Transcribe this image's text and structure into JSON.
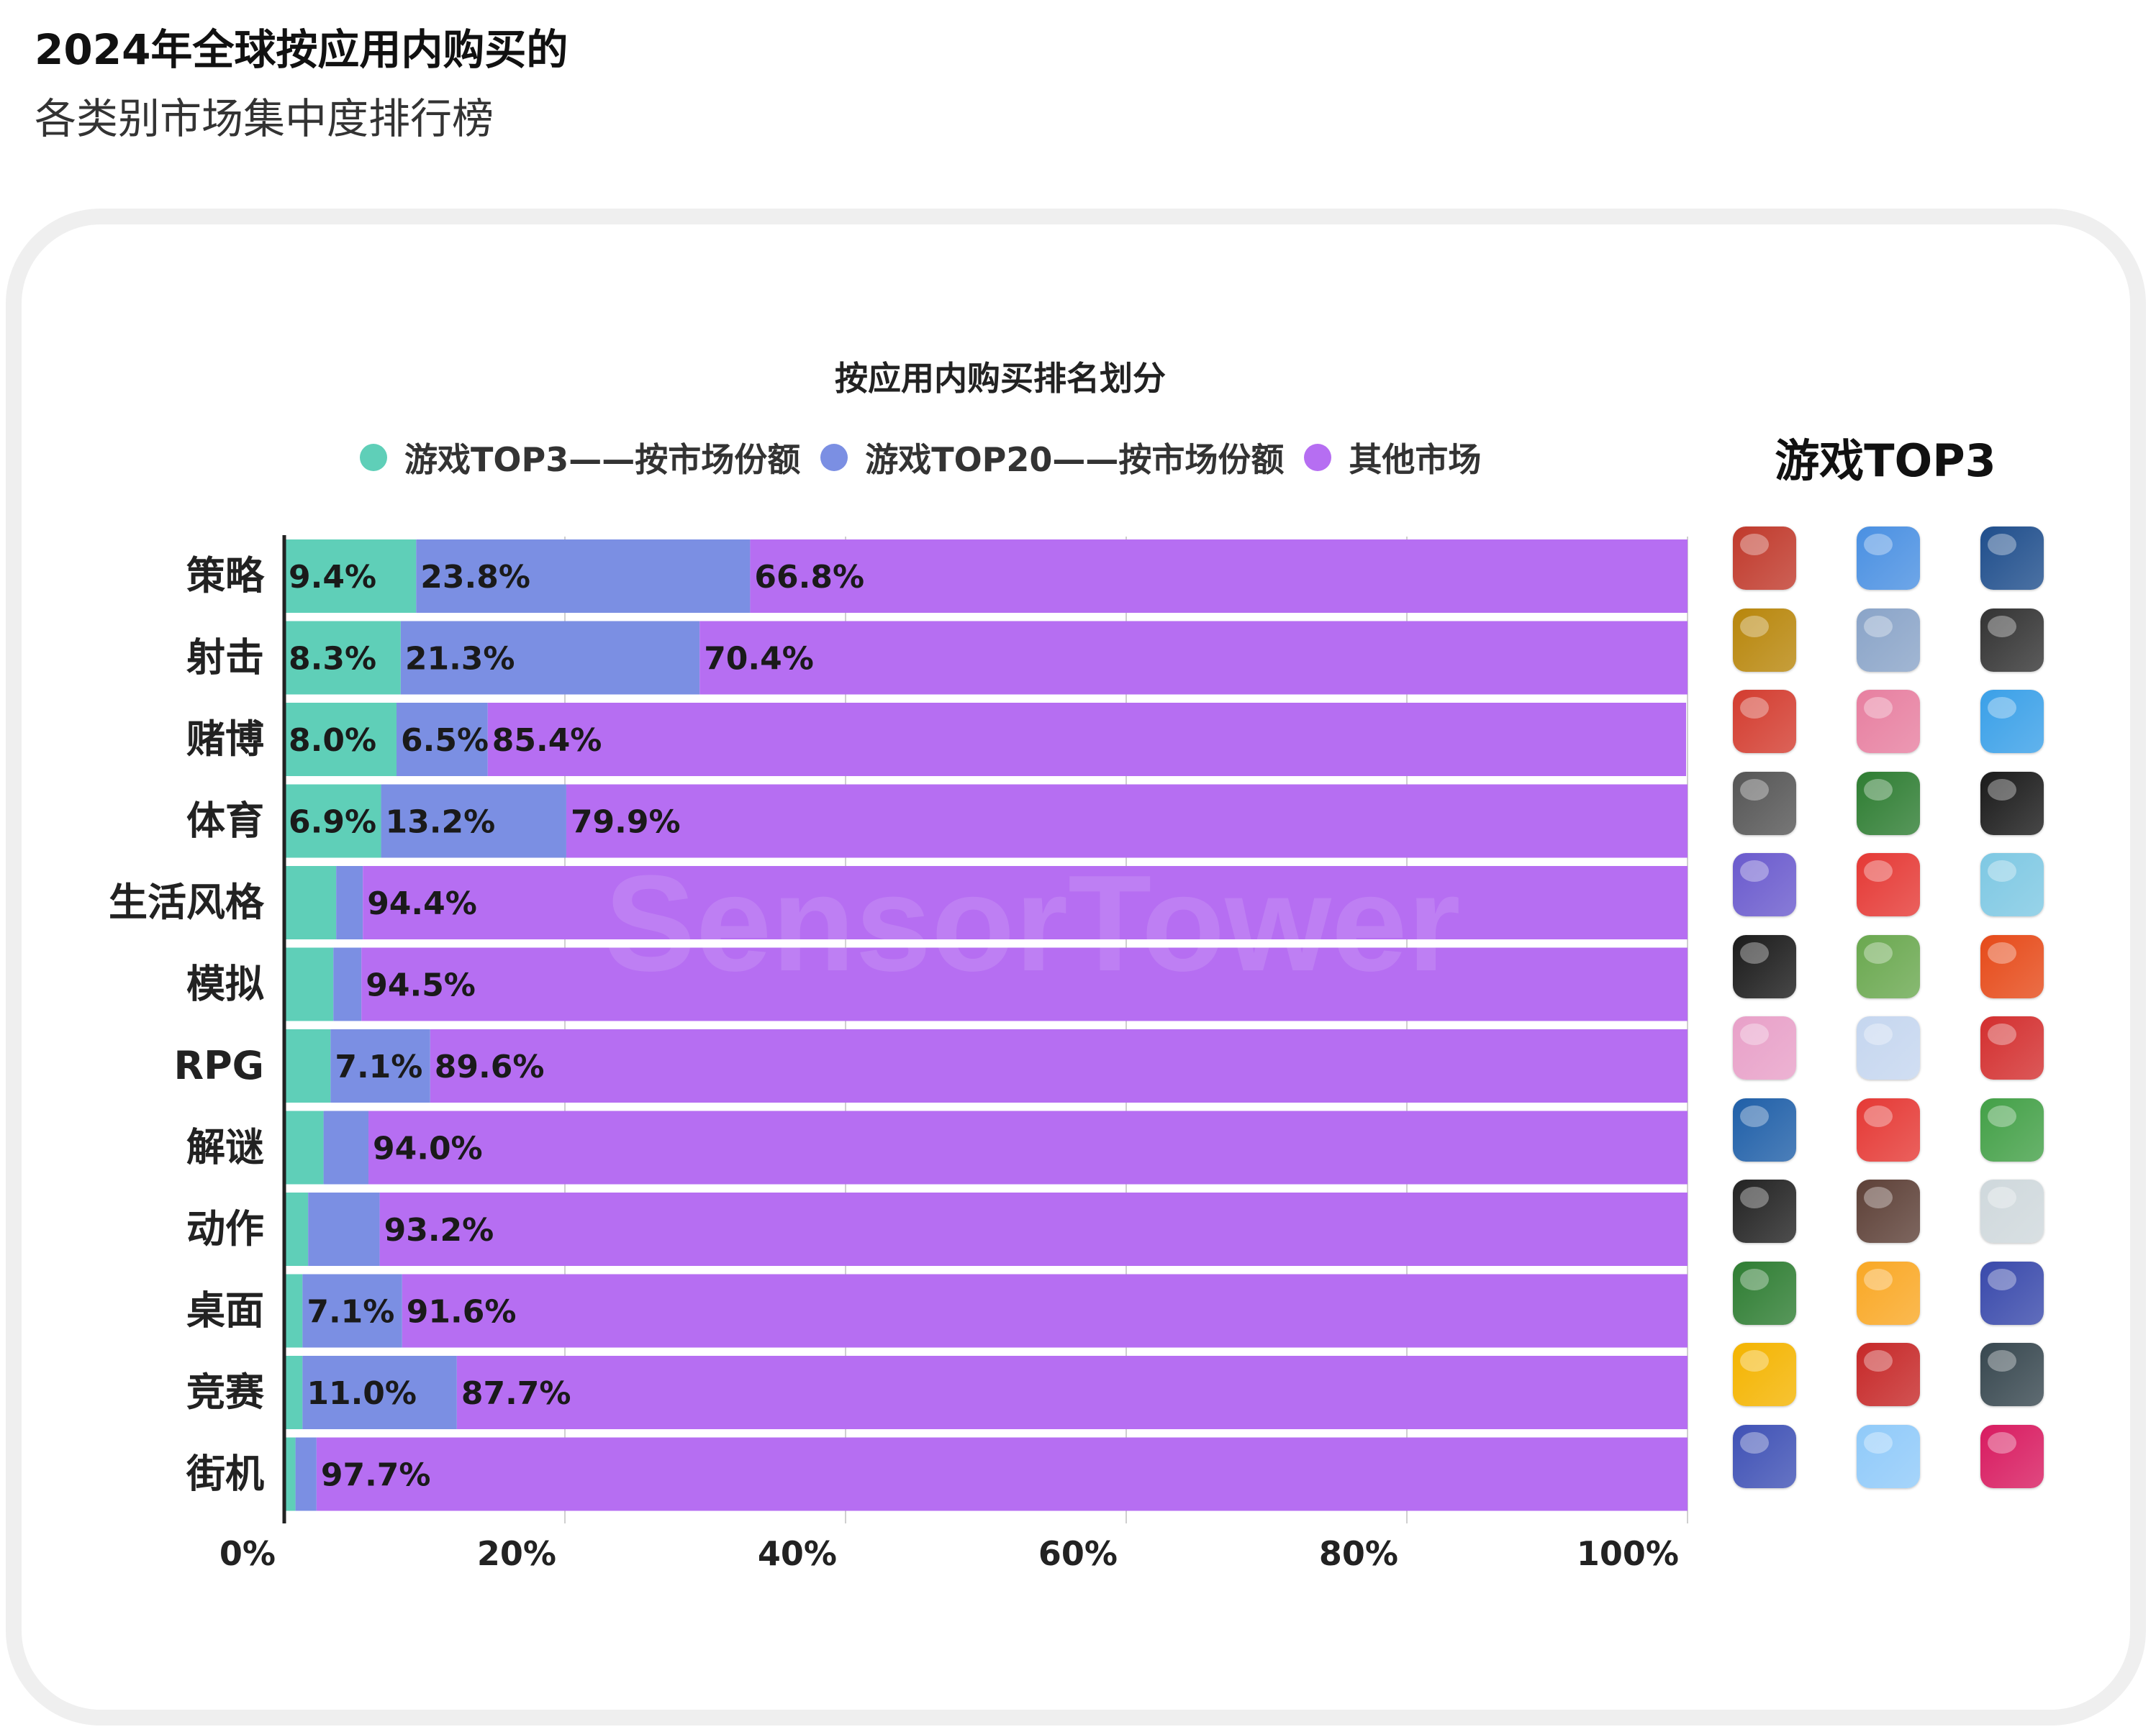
{
  "header": {
    "title": "2024年全球按应用内购买的",
    "subtitle": "各类别市场集中度排行榜"
  },
  "chart_data": {
    "type": "bar",
    "orientation": "horizontal",
    "stacked": true,
    "title": "按应用内购买排名划分",
    "categories": [
      "策略",
      "射击",
      "赌博",
      "体育",
      "生活风格",
      "模拟",
      "RPG",
      "解谜",
      "动作",
      "桌面",
      "竞赛",
      "街机"
    ],
    "series": [
      {
        "name": "游戏TOP3——按市场份额",
        "color": "#5fcfb8",
        "values": [
          9.4,
          8.3,
          8.0,
          6.9,
          3.7,
          3.5,
          3.3,
          2.8,
          1.7,
          1.3,
          1.3,
          0.8
        ],
        "labels": [
          "9.4%",
          "8.3%",
          "8.0%",
          "6.9%",
          "",
          "",
          "",
          "",
          "",
          "",
          "",
          ""
        ]
      },
      {
        "name": "游戏TOP20——按市场份额",
        "color": "#7b8fe3",
        "values": [
          23.8,
          21.3,
          6.5,
          13.2,
          1.9,
          2.0,
          7.1,
          3.2,
          5.1,
          7.1,
          11.0,
          1.5
        ],
        "labels": [
          "23.8%",
          "21.3%",
          "6.5%",
          "13.2%",
          "",
          "",
          "7.1%",
          "",
          "",
          "7.1%",
          "11.0%",
          ""
        ]
      },
      {
        "name": "其他市场",
        "color": "#b66ef2",
        "values": [
          66.8,
          70.4,
          85.4,
          79.9,
          94.4,
          94.5,
          89.6,
          94.0,
          93.2,
          91.6,
          87.7,
          97.7
        ],
        "labels": [
          "66.8%",
          "70.4%",
          "85.4%",
          "79.9%",
          "94.4%",
          "94.5%",
          "89.6%",
          "94.0%",
          "93.2%",
          "91.6%",
          "87.7%",
          "97.7%"
        ]
      }
    ],
    "xlim": [
      0,
      100
    ],
    "xticks": [
      "0%",
      "20%",
      "40%",
      "60%",
      "80%",
      "100%"
    ],
    "grid": true,
    "legend_position": "top"
  },
  "top3_panel": {
    "title": "游戏TOP3",
    "icon_rows": [
      [
        {
          "name": "king-hero-icon",
          "color": "#c0392b"
        },
        {
          "name": "number-puzzle-icon",
          "color": "#4a90e2"
        },
        {
          "name": "globe-icon",
          "color": "#1f4e8c"
        }
      ],
      [
        {
          "name": "soldier-helmet-icon",
          "color": "#b8860b"
        },
        {
          "name": "pubg-helmet-icon",
          "color": "#8aa4c8"
        },
        {
          "name": "call-of-duty-icon",
          "color": "#333333"
        }
      ],
      [
        {
          "name": "monopoly-icon",
          "color": "#d33c2f"
        },
        {
          "name": "pig-icon",
          "color": "#e77fa0"
        },
        {
          "name": "bingo-icon",
          "color": "#3aa0e8"
        }
      ],
      [
        {
          "name": "baseball-team-icon",
          "color": "#555555"
        },
        {
          "name": "soccer-icon",
          "color": "#2e7d32"
        },
        {
          "name": "konami-soccer-icon",
          "color": "#1a1a1a"
        }
      ],
      [
        {
          "name": "anime-boy-icon",
          "color": "#6a5acd"
        },
        {
          "name": "r-logo-icon",
          "color": "#e53935"
        },
        {
          "name": "avatar-world-icon",
          "color": "#7ec8e3"
        }
      ],
      [
        {
          "name": "roblox-icon",
          "color": "#1a1a1a"
        },
        {
          "name": "farm-icon",
          "color": "#6aa84f"
        },
        {
          "name": "rooster-icon",
          "color": "#e64a19"
        }
      ],
      [
        {
          "name": "star-rail-icon",
          "color": "#e8a0c8"
        },
        {
          "name": "genshin-icon",
          "color": "#c5d6ef"
        },
        {
          "name": "monster-icon",
          "color": "#d32f2f"
        }
      ],
      [
        {
          "name": "royal-match-icon",
          "color": "#1f5fa8"
        },
        {
          "name": "candy-icon",
          "color": "#e53935"
        },
        {
          "name": "homescapes-icon",
          "color": "#43a047"
        }
      ],
      [
        {
          "name": "dragon-icon",
          "color": "#222222"
        },
        {
          "name": "detective-icon",
          "color": "#5d4037"
        },
        {
          "name": "anime-girl-icon",
          "color": "#cfd8dc"
        }
      ],
      [
        {
          "name": "solitaire-icon",
          "color": "#2e7d32"
        },
        {
          "name": "dice-icon",
          "color": "#f9a825"
        },
        {
          "name": "ludo-icon",
          "color": "#3949ab"
        }
      ],
      [
        {
          "name": "racer-girl-icon",
          "color": "#f4b400"
        },
        {
          "name": "racing-car-icon",
          "color": "#c62828"
        },
        {
          "name": "csr2-icon",
          "color": "#37474f"
        }
      ],
      [
        {
          "name": "egg-party-icon",
          "color": "#3f51b5"
        },
        {
          "name": "anime-idol-icon",
          "color": "#90caf9"
        },
        {
          "name": "oys-icon",
          "color": "#d81b60"
        }
      ]
    ]
  },
  "watermark": "SensorTower"
}
